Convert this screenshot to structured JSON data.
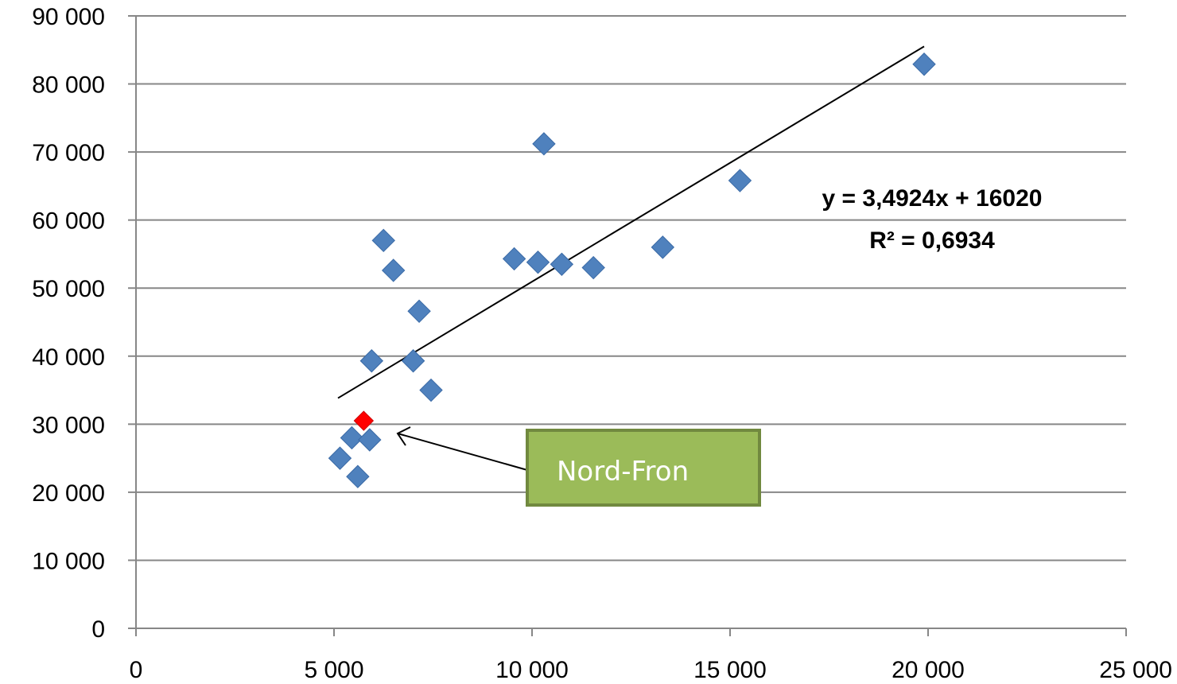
{
  "chart_data": {
    "type": "scatter",
    "x_ticks": [
      "0",
      "5 000",
      "10 000",
      "15 000",
      "20 000",
      "25 000"
    ],
    "y_ticks": [
      "0",
      "10 000",
      "20 000",
      "30 000",
      "40 000",
      "50 000",
      "60 000",
      "70 000",
      "80 000",
      "90 000"
    ],
    "xlim": [
      0,
      25000
    ],
    "ylim": [
      0,
      90000
    ],
    "grid": "horizontal",
    "series": [
      {
        "color": "#4F81BD",
        "marker": "diamond",
        "points": [
          [
            5150,
            25000
          ],
          [
            5450,
            28000
          ],
          [
            5600,
            22300
          ],
          [
            5900,
            27700
          ],
          [
            5950,
            39300
          ],
          [
            6250,
            57000
          ],
          [
            6500,
            52600
          ],
          [
            7000,
            39300
          ],
          [
            7150,
            46600
          ],
          [
            7450,
            35000
          ],
          [
            9550,
            54300
          ],
          [
            10150,
            53800
          ],
          [
            10300,
            71200
          ],
          [
            10750,
            53500
          ],
          [
            11550,
            53000
          ],
          [
            13300,
            56000
          ],
          [
            15250,
            65800
          ],
          [
            19900,
            82900
          ]
        ]
      }
    ],
    "highlight": {
      "label": "Nord-Fron",
      "x": 5750,
      "y": 30500,
      "color": "#FF0000"
    },
    "trendline": {
      "slope": 3.4924,
      "intercept": 16020,
      "x_range": [
        5100,
        19900
      ],
      "equation": "y = 3,4924x + 16020",
      "r_squared_text": "R² = 0,6934"
    },
    "callout": {
      "fill": "#9BBB59",
      "border": "#71893F"
    }
  }
}
